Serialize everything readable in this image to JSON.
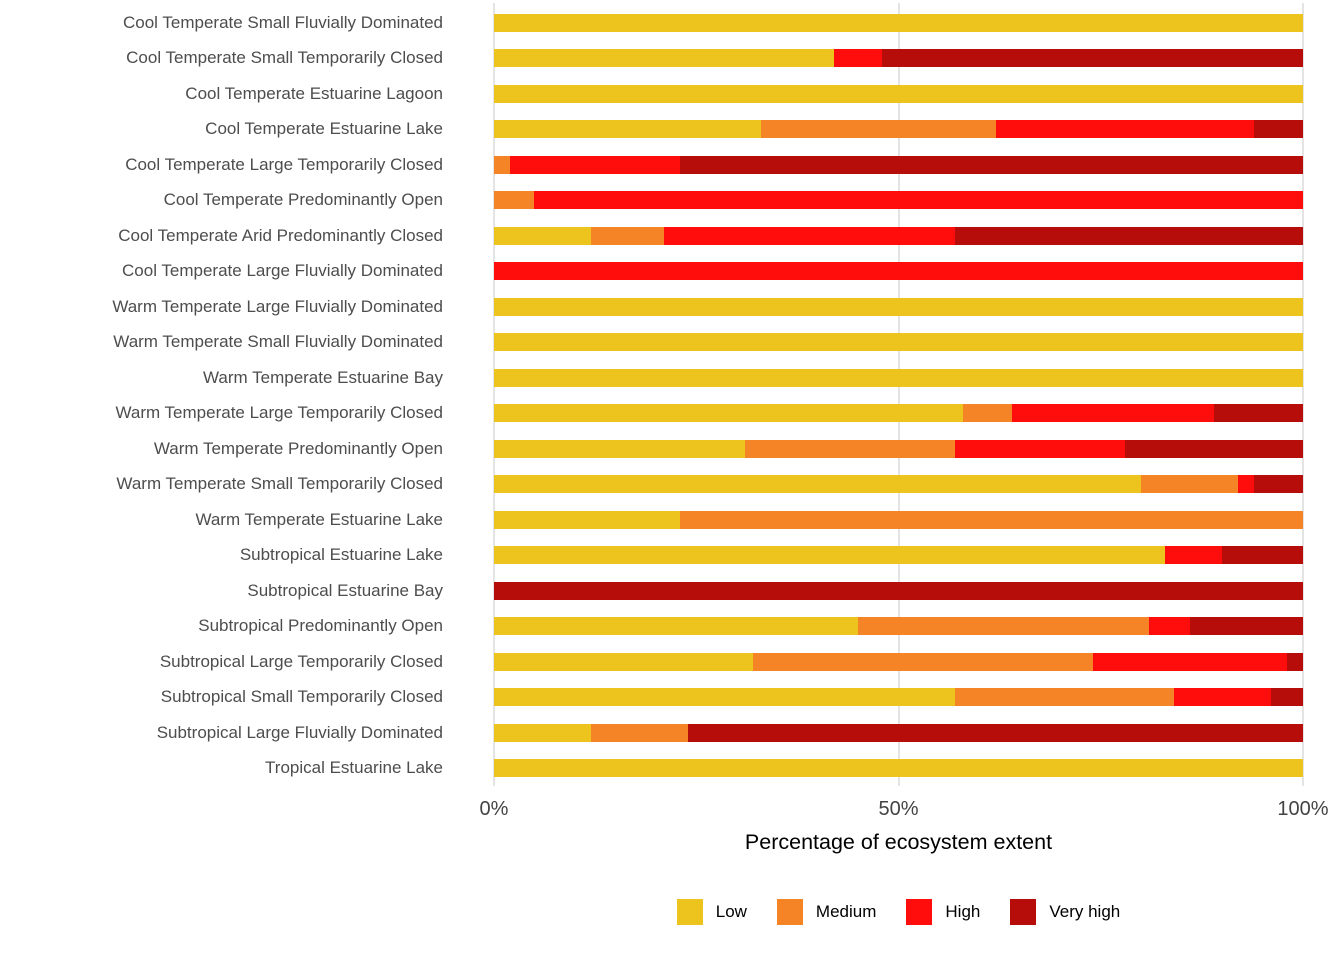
{
  "chart_data": {
    "type": "bar",
    "orientation": "horizontal",
    "stacked": true,
    "unit": "percent",
    "title": "",
    "xlabel": "Percentage of ecosystem extent",
    "ylabel": "",
    "xlim": [
      0,
      100
    ],
    "x_ticks": [
      {
        "label": "0%",
        "value": 0
      },
      {
        "label": "50%",
        "value": 50
      },
      {
        "label": "100%",
        "value": 100
      }
    ],
    "grid": {
      "vertical_lines_at": [
        0,
        50,
        100
      ],
      "color": "#e4e4e4"
    },
    "legend_position": "bottom",
    "categories": [
      "Cool Temperate Small Fluvially Dominated",
      "Cool Temperate Small Temporarily Closed",
      "Cool Temperate Estuarine Lagoon",
      "Cool Temperate Estuarine Lake",
      "Cool Temperate Large Temporarily Closed",
      "Cool Temperate Predominantly Open",
      "Cool Temperate Arid Predominantly Closed",
      "Cool Temperate Large Fluvially Dominated",
      "Warm Temperate Large Fluvially Dominated",
      "Warm Temperate Small Fluvially Dominated",
      "Warm Temperate Estuarine Bay",
      "Warm Temperate Large Temporarily Closed",
      "Warm Temperate Predominantly Open",
      "Warm Temperate Small Temporarily Closed",
      "Warm Temperate Estuarine Lake",
      "Subtropical Estuarine Lake",
      "Subtropical Estuarine Bay",
      "Subtropical Predominantly Open",
      "Subtropical Large Temporarily Closed",
      "Subtropical Small Temporarily Closed",
      "Subtropical Large Fluvially Dominated",
      "Tropical Estuarine Lake"
    ],
    "series": [
      {
        "name": "Low",
        "color": "#EDC41D",
        "values": [
          100,
          42,
          100,
          33,
          0,
          0,
          12,
          0,
          100,
          100,
          100,
          58,
          31,
          80,
          23,
          83,
          0,
          45,
          32,
          57,
          12,
          100
        ]
      },
      {
        "name": "Medium",
        "color": "#F58427",
        "values": [
          0,
          0,
          0,
          29,
          2,
          5,
          9,
          0,
          0,
          0,
          0,
          6,
          26,
          12,
          77,
          0,
          0,
          36,
          42,
          27,
          12,
          0
        ]
      },
      {
        "name": "High",
        "color": "#FE0D0C",
        "values": [
          0,
          6,
          0,
          32,
          21,
          95,
          36,
          100,
          0,
          0,
          0,
          25,
          21,
          2,
          0,
          7,
          0,
          5,
          24,
          12,
          0,
          0
        ]
      },
      {
        "name": "Very high",
        "color": "#B60D0B",
        "values": [
          0,
          52,
          0,
          6,
          77,
          0,
          43,
          0,
          0,
          0,
          0,
          11,
          22,
          6,
          0,
          10,
          100,
          14,
          2,
          4,
          76,
          0
        ]
      }
    ]
  }
}
